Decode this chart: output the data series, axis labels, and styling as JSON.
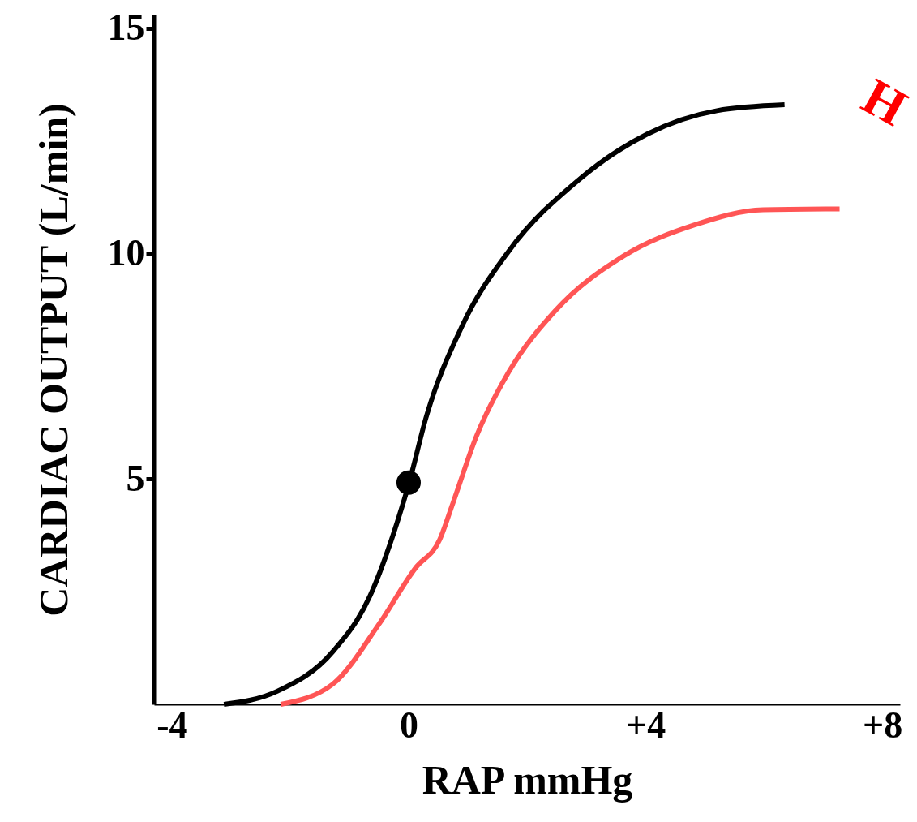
{
  "chart_data": {
    "type": "line",
    "xlabel": "RAP mmHg",
    "ylabel": "CARDIAC  OUTPUT  (L/min)",
    "xlim": [
      -4.3,
      8.3
    ],
    "ylim": [
      0,
      15.3
    ],
    "xticks": [
      -4,
      0,
      {
        "value": 4,
        "label": "+4"
      },
      {
        "value": 8,
        "label": "+8"
      }
    ],
    "yticks": [
      5,
      10,
      15
    ],
    "series": [
      {
        "color": "#000000",
        "x": [
          -3.12,
          -2.22,
          -1.28,
          -0.65,
          -0.19,
          0.01,
          0.29,
          0.91,
          1.69,
          2.86,
          4.03,
          5.21,
          6.35
        ],
        "values": [
          0,
          0.29,
          1.17,
          2.41,
          4.05,
          4.92,
          6.34,
          8.41,
          10.05,
          11.62,
          12.65,
          13.17,
          13.3
        ]
      },
      {
        "color": "#ff5555",
        "x": [
          -2.16,
          -1.28,
          -0.5,
          0.12,
          0.52,
          0.75,
          1.14,
          1.69,
          2.47,
          3.65,
          4.82,
          5.99,
          7.28
        ],
        "values": [
          0,
          0.45,
          1.78,
          3.03,
          3.64,
          4.47,
          5.93,
          7.37,
          8.72,
          9.96,
          10.63,
          10.97,
          10.99
        ]
      },
      {
        "type": "scatter",
        "marker": "circle",
        "color": "#000000",
        "x": [
          0
        ],
        "values": [
          4.92
        ]
      }
    ],
    "annotations": [
      "H"
    ],
    "line_style": "solid"
  }
}
